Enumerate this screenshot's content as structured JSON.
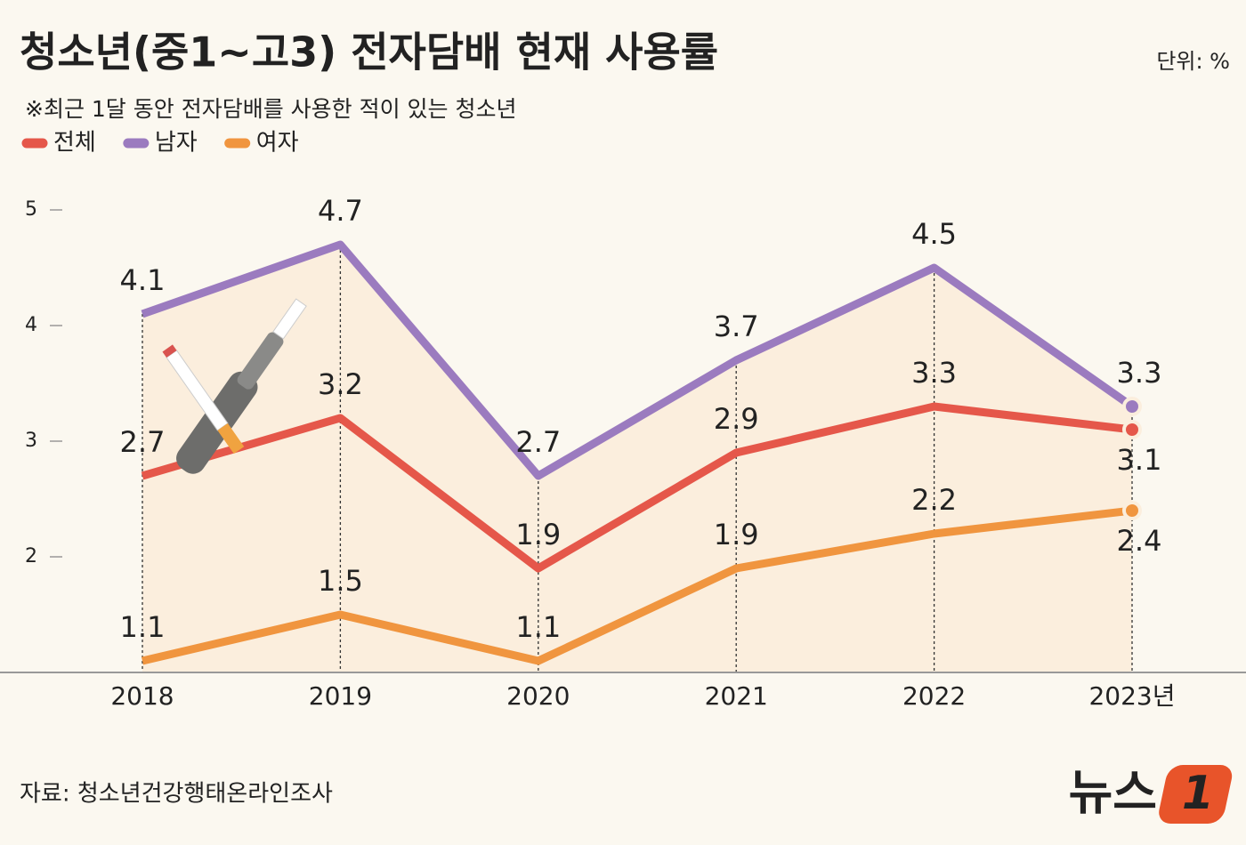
{
  "chart_data": {
    "type": "line",
    "title": "청소년(중1~고3) 전자담배 현재 사용률",
    "subtitle": "※최근 1달 동안 전자담배를 사용한 적이 있는 청소년",
    "unit": "단위: %",
    "source": "자료: 청소년건강행태온라인조사",
    "logo": {
      "text": "뉴스",
      "badge": "1"
    },
    "categories": [
      "2018",
      "2019",
      "2020",
      "2021",
      "2022",
      "2023년"
    ],
    "series": [
      {
        "name": "전체",
        "color": "#e5574a",
        "values": [
          2.7,
          3.2,
          1.9,
          2.9,
          3.3,
          3.1
        ]
      },
      {
        "name": "남자",
        "color": "#9b7bbf",
        "values": [
          4.1,
          4.7,
          2.7,
          3.7,
          4.5,
          3.3
        ]
      },
      {
        "name": "여자",
        "color": "#f0953f",
        "values": [
          1.1,
          1.5,
          1.1,
          1.9,
          2.2,
          2.4
        ]
      }
    ],
    "ylim": [
      1,
      5
    ],
    "yticks": [
      2,
      3,
      4,
      5
    ]
  }
}
